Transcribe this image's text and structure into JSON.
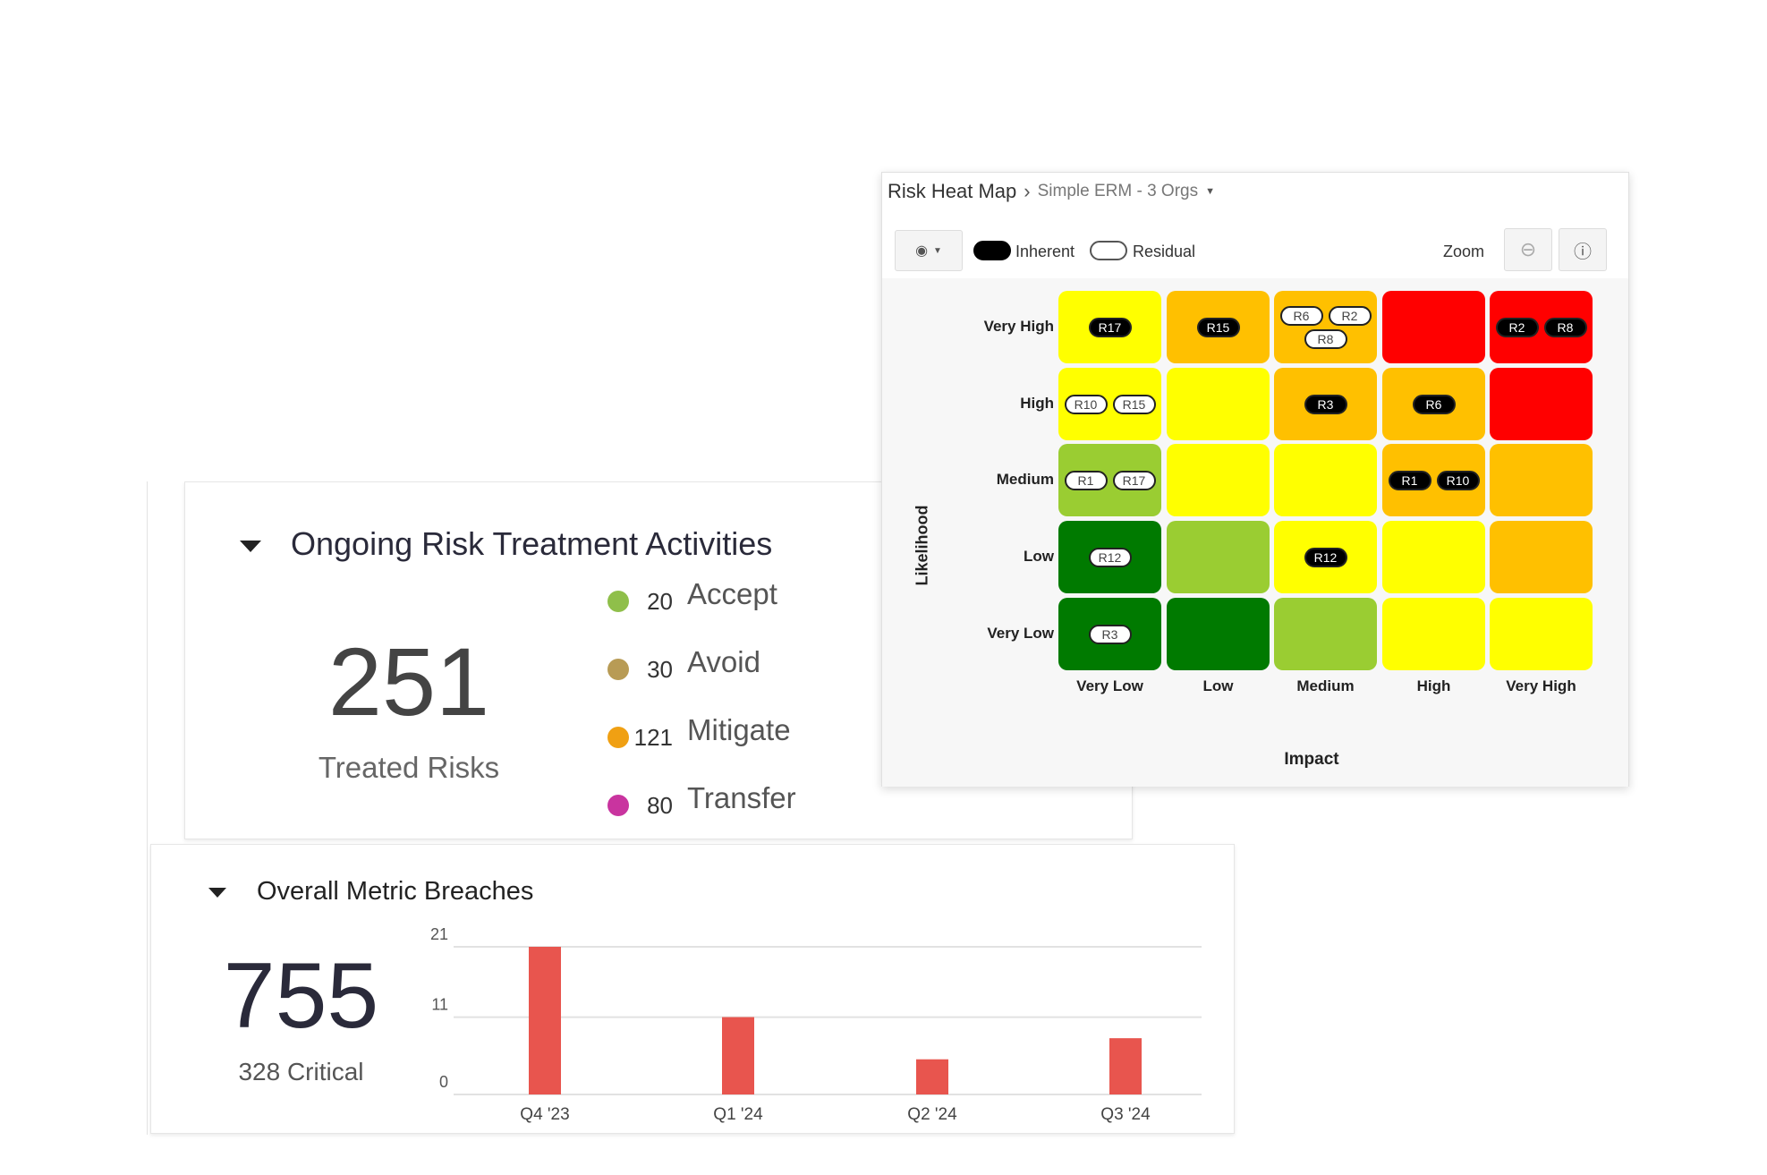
{
  "treatment": {
    "title": "Ongoing Risk Treatment Activities",
    "total": "251",
    "total_label": "Treated Risks",
    "legend": [
      {
        "count": "20",
        "label": "Accept",
        "color": "#8fbf4a"
      },
      {
        "count": "30",
        "label": "Avoid",
        "color": "#b89b55"
      },
      {
        "count": "121",
        "label": "Mitigate",
        "color": "#f0a013"
      },
      {
        "count": "80",
        "label": "Transfer",
        "color": "#c9349f"
      }
    ]
  },
  "breaches": {
    "title": "Overall Metric Breaches",
    "total": "755",
    "critical": "328 Critical"
  },
  "chart_data": {
    "type": "bar",
    "categories": [
      "Q4 '23",
      "Q1 '24",
      "Q2 '24",
      "Q3 '24"
    ],
    "values": [
      21,
      11,
      5,
      8
    ],
    "yticks": [
      "21",
      "11",
      "0"
    ],
    "ytick_values": [
      21,
      11,
      0
    ],
    "ylim": [
      0,
      21
    ],
    "color": "#e8554e",
    "grid": true
  },
  "heatmap": {
    "title": "Risk Heat Map",
    "crumb": "Simple ERM - 3 Orgs",
    "legend_inherent": "Inherent",
    "legend_residual": "Residual",
    "zoom_label": "Zoom",
    "ylabel": "Likelihood",
    "xlabel": "Impact",
    "rows": [
      "Very High",
      "High",
      "Medium",
      "Low",
      "Very Low"
    ],
    "cols": [
      "Very Low",
      "Low",
      "Medium",
      "High",
      "Very High"
    ],
    "colors": {
      "Y": "#ffff00",
      "O": "#ffc000",
      "R": "#ff0000",
      "LG": "#9acd32",
      "DG": "#007a00"
    },
    "matrix": [
      [
        "Y",
        "O",
        "O",
        "R",
        "R"
      ],
      [
        "Y",
        "Y",
        "O",
        "O",
        "R"
      ],
      [
        "LG",
        "Y",
        "Y",
        "O",
        "O"
      ],
      [
        "DG",
        "LG",
        "Y",
        "Y",
        "O"
      ],
      [
        "DG",
        "DG",
        "LG",
        "Y",
        "Y"
      ]
    ],
    "badges": [
      [
        [
          {
            "id": "R17",
            "t": "inh"
          }
        ],
        [
          {
            "id": "R15",
            "t": "inh"
          }
        ],
        [
          {
            "id": "R6",
            "t": "res"
          },
          {
            "id": "R2",
            "t": "res"
          },
          {
            "id": "R8",
            "t": "res"
          }
        ],
        [],
        [
          {
            "id": "R2",
            "t": "inh"
          },
          {
            "id": "R8",
            "t": "inh"
          }
        ]
      ],
      [
        [
          {
            "id": "R10",
            "t": "res"
          },
          {
            "id": "R15",
            "t": "res"
          }
        ],
        [],
        [
          {
            "id": "R3",
            "t": "inh"
          }
        ],
        [
          {
            "id": "R6",
            "t": "inh"
          }
        ],
        []
      ],
      [
        [
          {
            "id": "R1",
            "t": "res"
          },
          {
            "id": "R17",
            "t": "res"
          }
        ],
        [],
        [],
        [
          {
            "id": "R1",
            "t": "inh"
          },
          {
            "id": "R10",
            "t": "inh"
          }
        ],
        []
      ],
      [
        [
          {
            "id": "R12",
            "t": "res"
          }
        ],
        [],
        [
          {
            "id": "R12",
            "t": "inh"
          }
        ],
        [],
        []
      ],
      [
        [
          {
            "id": "R3",
            "t": "res"
          }
        ],
        [],
        [],
        [],
        []
      ]
    ]
  }
}
